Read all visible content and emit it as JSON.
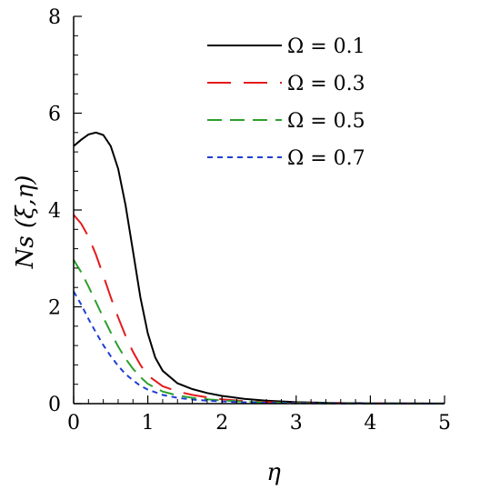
{
  "chart_data": {
    "type": "line",
    "title": "",
    "xlabel": "η",
    "ylabel": "Ns (ξ,η)",
    "xlim": [
      0,
      5
    ],
    "ylim": [
      0,
      8
    ],
    "x_ticks": [
      "0",
      "1",
      "2",
      "3",
      "4",
      "5"
    ],
    "y_ticks": [
      "0",
      "2",
      "4",
      "6",
      "8"
    ],
    "grid": false,
    "legend_position": "top-right",
    "series": [
      {
        "name": "Ω = 0.1",
        "color": "#000000",
        "dash": "solid",
        "x": [
          0,
          0.1,
          0.2,
          0.3,
          0.4,
          0.5,
          0.6,
          0.7,
          0.8,
          0.9,
          1.0,
          1.1,
          1.2,
          1.4,
          1.6,
          1.8,
          2.0,
          2.3,
          2.6,
          3.0,
          3.5,
          4.0,
          4.5,
          5.0
        ],
        "y": [
          5.32,
          5.45,
          5.56,
          5.6,
          5.55,
          5.32,
          4.85,
          4.1,
          3.15,
          2.2,
          1.45,
          0.95,
          0.68,
          0.42,
          0.3,
          0.22,
          0.16,
          0.1,
          0.06,
          0.03,
          0.015,
          0.008,
          0.004,
          0.002
        ]
      },
      {
        "name": "Ω = 0.3",
        "color": "#e41a1c",
        "dash": "long",
        "x": [
          0,
          0.1,
          0.2,
          0.3,
          0.4,
          0.5,
          0.6,
          0.7,
          0.8,
          0.9,
          1.0,
          1.2,
          1.4,
          1.6,
          1.8,
          2.0,
          2.3,
          2.6,
          3.0,
          3.5,
          4.0,
          4.5,
          5.0
        ],
        "y": [
          3.9,
          3.72,
          3.45,
          3.08,
          2.65,
          2.2,
          1.78,
          1.4,
          1.07,
          0.8,
          0.58,
          0.36,
          0.25,
          0.18,
          0.13,
          0.09,
          0.05,
          0.03,
          0.015,
          0.008,
          0.004,
          0.002,
          0.001
        ]
      },
      {
        "name": "Ω = 0.5",
        "color": "#2ca02c",
        "dash": "medium",
        "x": [
          0,
          0.1,
          0.2,
          0.3,
          0.4,
          0.5,
          0.6,
          0.7,
          0.8,
          0.9,
          1.0,
          1.2,
          1.4,
          1.6,
          1.8,
          2.0,
          2.3,
          2.6,
          3.0,
          3.5,
          4.0,
          4.5,
          5.0
        ],
        "y": [
          2.97,
          2.72,
          2.42,
          2.1,
          1.78,
          1.47,
          1.18,
          0.93,
          0.72,
          0.55,
          0.41,
          0.25,
          0.17,
          0.12,
          0.09,
          0.065,
          0.04,
          0.025,
          0.012,
          0.006,
          0.003,
          0.002,
          0.001
        ]
      },
      {
        "name": "Ω = 0.7",
        "color": "#1f3fd6",
        "dash": "short",
        "x": [
          0,
          0.1,
          0.2,
          0.3,
          0.4,
          0.5,
          0.6,
          0.7,
          0.8,
          0.9,
          1.0,
          1.2,
          1.4,
          1.6,
          1.8,
          2.0,
          2.3,
          2.6,
          3.0,
          3.5,
          4.0,
          4.5,
          5.0
        ],
        "y": [
          2.32,
          2.05,
          1.75,
          1.47,
          1.21,
          0.98,
          0.78,
          0.61,
          0.48,
          0.37,
          0.29,
          0.18,
          0.12,
          0.085,
          0.06,
          0.045,
          0.028,
          0.017,
          0.008,
          0.004,
          0.002,
          0.001,
          0.0005
        ]
      }
    ]
  }
}
